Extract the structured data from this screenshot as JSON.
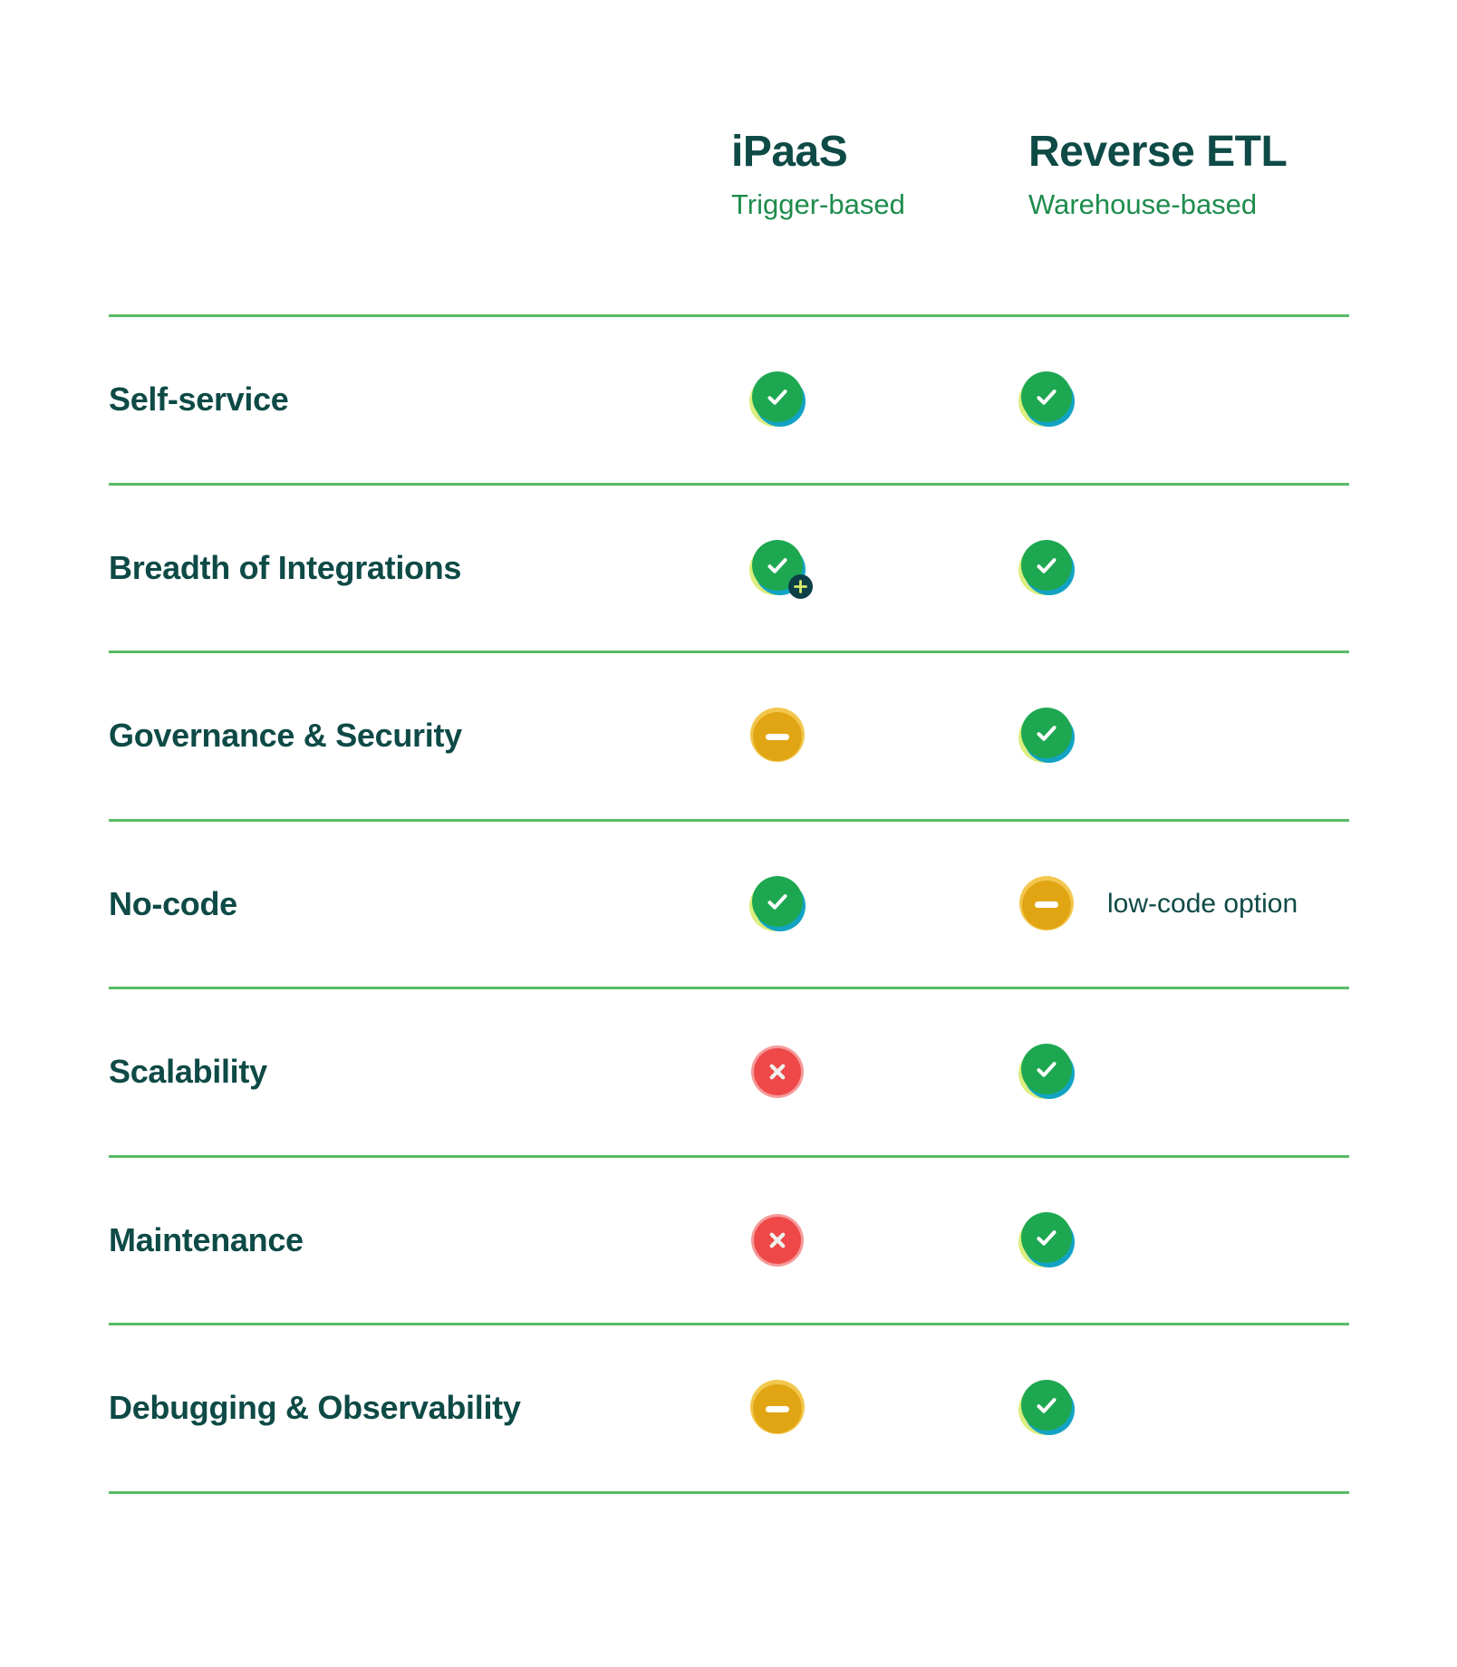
{
  "header": {
    "columns": [
      {
        "id": "ipaas",
        "title": "iPaaS",
        "subtitle": "Trigger-based"
      },
      {
        "id": "reverse-etl",
        "title": "Reverse ETL",
        "subtitle": "Warehouse-based"
      }
    ]
  },
  "table": {
    "rows": [
      {
        "label": "Self-service",
        "ipaas": {
          "icon": "check"
        },
        "reverse_etl": {
          "icon": "check"
        }
      },
      {
        "label": "Breadth of Integrations",
        "ipaas": {
          "icon": "check-plus"
        },
        "reverse_etl": {
          "icon": "check"
        }
      },
      {
        "label": "Governance & Security",
        "ipaas": {
          "icon": "dash"
        },
        "reverse_etl": {
          "icon": "check"
        }
      },
      {
        "label": "No-code",
        "ipaas": {
          "icon": "check"
        },
        "reverse_etl": {
          "icon": "dash",
          "note": "low-code option"
        }
      },
      {
        "label": "Scalability",
        "ipaas": {
          "icon": "cross"
        },
        "reverse_etl": {
          "icon": "check"
        }
      },
      {
        "label": "Maintenance",
        "ipaas": {
          "icon": "cross"
        },
        "reverse_etl": {
          "icon": "check"
        }
      },
      {
        "label": "Debugging & Observability",
        "ipaas": {
          "icon": "dash"
        },
        "reverse_etl": {
          "icon": "check"
        }
      }
    ]
  },
  "icons": {
    "check": "check-icon",
    "check-plus": "check-plus-icon",
    "dash": "dash-icon",
    "cross": "cross-icon",
    "plus_badge": "plus-badge-icon"
  },
  "icon_meanings": {
    "check": "yes / supported",
    "check-plus": "yes, with more integrations",
    "dash": "partial / limited",
    "cross": "no / unsupported"
  },
  "colors": {
    "dark_text": "#0e4a46",
    "subtitle_green": "#1e8c4d",
    "divider_green": "#56bb66",
    "check_green": "#1ea751",
    "accent_lime": "#dcee80",
    "accent_teal": "#12a3c4",
    "dash_amber": "#e1a514",
    "dash_amber_light": "#f2c74e",
    "cross_red": "#ee4848",
    "cross_red_light": "#f59a9a",
    "badge_dark_teal": "#0d4046",
    "badge_plus_lime": "#d8eb6d",
    "background": "#ffffff"
  },
  "chart_data": {
    "type": "table",
    "title": "iPaaS vs Reverse ETL feature comparison",
    "categories": [
      "Self-service",
      "Breadth of Integrations",
      "Governance & Security",
      "No-code",
      "Scalability",
      "Maintenance",
      "Debugging & Observability"
    ],
    "series": [
      {
        "name": "iPaaS (Trigger-based)",
        "values": [
          "yes",
          "yes-plus",
          "partial",
          "yes",
          "no",
          "no",
          "partial"
        ]
      },
      {
        "name": "Reverse ETL (Warehouse-based)",
        "values": [
          "yes",
          "yes",
          "yes",
          "partial (low-code option)",
          "yes",
          "yes",
          "yes"
        ]
      }
    ],
    "legend_position": "top",
    "grid": "horizontal-dividers-only"
  }
}
